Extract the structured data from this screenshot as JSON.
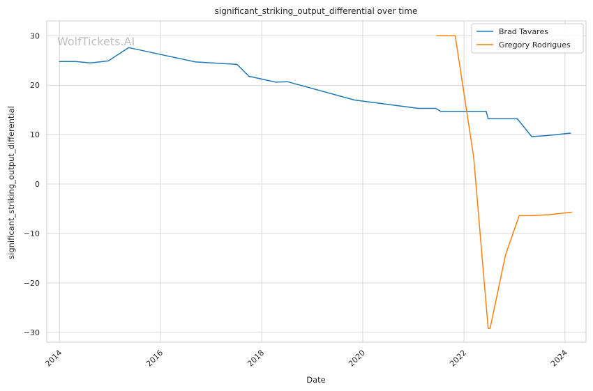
{
  "chart_data": {
    "type": "line",
    "title": "significant_striking_output_differential over time",
    "xlabel": "Date",
    "ylabel": "significant_striking_output_differential",
    "watermark": "WolfTickets.AI",
    "xlim": [
      "2013-10-01",
      "2024-06-01"
    ],
    "ylim": [
      -32,
      33
    ],
    "x_ticks": [
      "2014",
      "2016",
      "2018",
      "2020",
      "2022",
      "2024"
    ],
    "y_ticks": [
      30,
      20,
      10,
      0,
      -10,
      -20,
      -30
    ],
    "y_tick_labels": [
      "30",
      "20",
      "10",
      "0",
      "−10",
      "−20",
      "−30"
    ],
    "grid": true,
    "legend_position": "top-right",
    "series": [
      {
        "name": "Brad Tavares",
        "color": "#1f77b4",
        "points": [
          {
            "x": "2014-01-01",
            "y": 24.8
          },
          {
            "x": "2014-04-26",
            "y": 24.8
          },
          {
            "x": "2014-08-16",
            "y": 24.5
          },
          {
            "x": "2014-12-20",
            "y": 24.9
          },
          {
            "x": "2015-05-16",
            "y": 27.6
          },
          {
            "x": "2016-09-10",
            "y": 24.7
          },
          {
            "x": "2017-07-07",
            "y": 24.2
          },
          {
            "x": "2017-09-30",
            "y": 21.8
          },
          {
            "x": "2018-04-14",
            "y": 20.6
          },
          {
            "x": "2018-07-06",
            "y": 20.7
          },
          {
            "x": "2019-11-02",
            "y": 17.0
          },
          {
            "x": "2021-02-06",
            "y": 15.3
          },
          {
            "x": "2021-06-12",
            "y": 15.3
          },
          {
            "x": "2021-07-17",
            "y": 14.7
          },
          {
            "x": "2022-06-11",
            "y": 14.7
          },
          {
            "x": "2022-06-25",
            "y": 13.2
          },
          {
            "x": "2023-01-21",
            "y": 13.2
          },
          {
            "x": "2023-05-06",
            "y": 9.6
          },
          {
            "x": "2023-08-26",
            "y": 9.8
          },
          {
            "x": "2024-02-10",
            "y": 10.3
          }
        ]
      },
      {
        "name": "Gregory Rodrigues",
        "color": "#ff7f0e",
        "points": [
          {
            "x": "2021-06-19",
            "y": 30.0
          },
          {
            "x": "2021-10-30",
            "y": 30.0
          },
          {
            "x": "2022-03-12",
            "y": 5.5
          },
          {
            "x": "2022-06-25",
            "y": -29.2
          },
          {
            "x": "2022-07-09",
            "y": -29.2
          },
          {
            "x": "2022-10-29",
            "y": -14.3
          },
          {
            "x": "2023-02-04",
            "y": -6.4
          },
          {
            "x": "2023-05-13",
            "y": -6.4
          },
          {
            "x": "2023-09-09",
            "y": -6.2
          },
          {
            "x": "2024-02-17",
            "y": -5.7
          }
        ]
      }
    ]
  }
}
